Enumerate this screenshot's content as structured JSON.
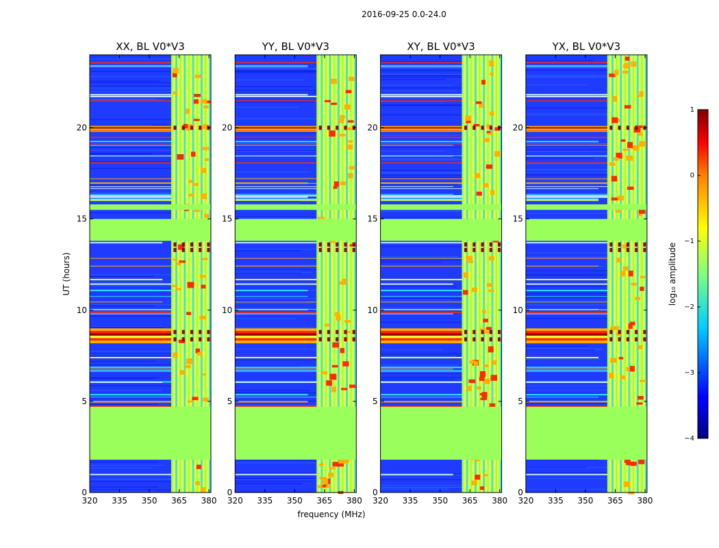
{
  "figure_title": "2016-09-25 0.0-24.0",
  "chart_data": {
    "type": "heatmap",
    "title": "2016-09-25 0.0-24.0",
    "xlabel": "frequency (MHz)",
    "ylabel": "UT (hours)",
    "xlim": [
      320,
      381
    ],
    "ylim": [
      0,
      24
    ],
    "xticks": [
      "320",
      "335",
      "350",
      "365",
      "380"
    ],
    "yticks": [
      "0",
      "5",
      "10",
      "15",
      "20"
    ],
    "colorbar": {
      "label": "log₁₀ amplitude",
      "range": [
        -4,
        1
      ],
      "ticks": [
        "1",
        "0",
        "−1",
        "−2",
        "−3",
        "−4"
      ],
      "colormap": "jet"
    },
    "panels": [
      {
        "title": "XX, BL V0*V3"
      },
      {
        "title": "YY, BL V0*V3"
      },
      {
        "title": "XY, BL V0*V3"
      },
      {
        "title": "YX, BL V0*V3"
      }
    ],
    "flagged_ut_ranges": [
      [
        1.8,
        4.7
      ],
      [
        13.8,
        15.0
      ]
    ],
    "strong_rfi_ut_ranges": [
      [
        8.2,
        9.0
      ],
      [
        19.8,
        20.1
      ]
    ],
    "rfi_band_mhz": [
      361.5,
      380.5
    ]
  }
}
